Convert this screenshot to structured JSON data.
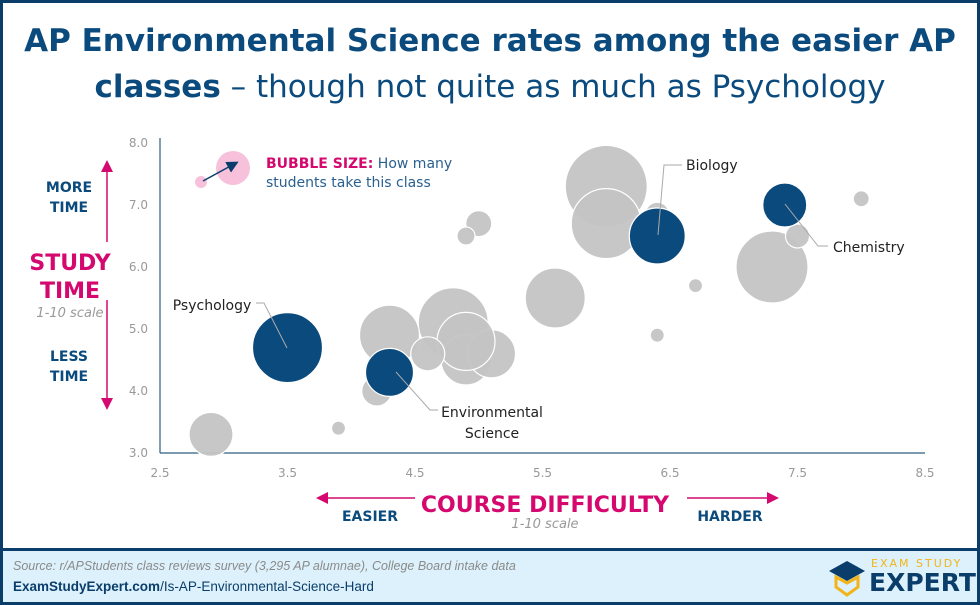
{
  "title": {
    "bold1": "AP Environmental Science rates among the easier AP",
    "bold2": "classes",
    "rest2": " – though not quite as much as Psychology"
  },
  "y_axis": {
    "label_line1": "STUDY",
    "label_line2": "TIME",
    "scale": "1-10 scale",
    "top_line1": "MORE",
    "top_line2": "TIME",
    "bottom_line1": "LESS",
    "bottom_line2": "TIME"
  },
  "x_axis": {
    "label": "COURSE DIFFICULTY",
    "scale": "1-10 scale",
    "left": "EASIER",
    "right": "HARDER"
  },
  "legend": {
    "bold": "BUBBLE SIZE:",
    "line1_rest": " How many",
    "line2": "students take this class"
  },
  "colors": {
    "highlight": "#0b4a7d",
    "other": "#c4c4c4",
    "legend_bubble": "#f7c1dc",
    "accent": "#d4086f"
  },
  "footer": {
    "source": "Source: r/APStudents class reviews survey (3,295 AP alumnae), College Board intake data",
    "url_bold": "ExamStudyExpert.com",
    "url_rest": "/Is-AP-Environmental-Science-Hard",
    "logo_top": "EXAM STUDY",
    "logo_bottom": "EXPERT"
  },
  "chart_data": {
    "type": "scatter",
    "subtype": "bubble",
    "xlim": [
      2.5,
      8.5
    ],
    "ylim": [
      3.0,
      8.0
    ],
    "xticks": [
      "2.5",
      "3.5",
      "4.5",
      "5.5",
      "6.5",
      "7.5",
      "8.5"
    ],
    "yticks": [
      "3.0",
      "4.0",
      "5.0",
      "6.0",
      "7.0",
      "8.0"
    ],
    "grid": false,
    "points": [
      {
        "x": 6.0,
        "y": 7.3,
        "size": 41
      },
      {
        "x": 4.8,
        "y": 5.1,
        "size": 35
      },
      {
        "x": 7.3,
        "y": 6.0,
        "size": 36
      },
      {
        "x": 6.0,
        "y": 6.7,
        "size": 35
      },
      {
        "x": 4.3,
        "y": 4.9,
        "size": 30
      },
      {
        "x": 5.6,
        "y": 5.5,
        "size": 30
      },
      {
        "x": 4.9,
        "y": 4.5,
        "size": 25
      },
      {
        "x": 5.1,
        "y": 4.6,
        "size": 24
      },
      {
        "x": 4.9,
        "y": 4.8,
        "size": 29
      },
      {
        "x": 4.6,
        "y": 4.6,
        "size": 17
      },
      {
        "x": 4.2,
        "y": 4.0,
        "size": 15
      },
      {
        "x": 2.9,
        "y": 3.3,
        "size": 22
      },
      {
        "x": 3.9,
        "y": 3.4,
        "size": 7
      },
      {
        "x": 5.0,
        "y": 6.7,
        "size": 13
      },
      {
        "x": 4.9,
        "y": 6.5,
        "size": 9
      },
      {
        "x": 6.4,
        "y": 6.85,
        "size": 12
      },
      {
        "x": 6.7,
        "y": 5.7,
        "size": 7
      },
      {
        "x": 6.4,
        "y": 4.9,
        "size": 7
      },
      {
        "x": 7.5,
        "y": 6.5,
        "size": 12
      },
      {
        "x": 8.0,
        "y": 7.1,
        "size": 8
      },
      {
        "x": 3.5,
        "y": 4.7,
        "size": 35,
        "label": "Psychology",
        "highlight": true
      },
      {
        "x": 4.3,
        "y": 4.3,
        "size": 24,
        "label": "Environmental Science",
        "highlight": true
      },
      {
        "x": 6.4,
        "y": 6.5,
        "size": 28,
        "label": "Biology",
        "highlight": true
      },
      {
        "x": 7.4,
        "y": 7.0,
        "size": 22,
        "label": "Chemistry",
        "highlight": true
      }
    ]
  }
}
